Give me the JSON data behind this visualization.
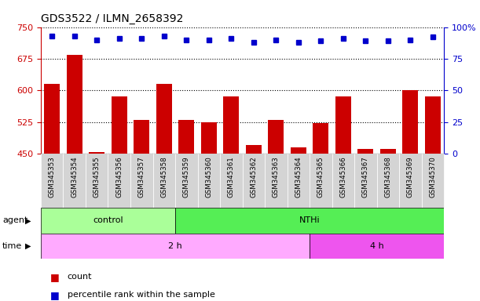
{
  "title": "GDS3522 / ILMN_2658392",
  "samples": [
    "GSM345353",
    "GSM345354",
    "GSM345355",
    "GSM345356",
    "GSM345357",
    "GSM345358",
    "GSM345359",
    "GSM345360",
    "GSM345361",
    "GSM345362",
    "GSM345363",
    "GSM345364",
    "GSM345365",
    "GSM345366",
    "GSM345367",
    "GSM345368",
    "GSM345369",
    "GSM345370"
  ],
  "counts": [
    615,
    685,
    453,
    585,
    530,
    615,
    530,
    525,
    585,
    470,
    530,
    465,
    523,
    585,
    460,
    460,
    600,
    585
  ],
  "percentiles": [
    93,
    93,
    90,
    91,
    91,
    93,
    90,
    90,
    91,
    88,
    90,
    88,
    89,
    91,
    89,
    89,
    90,
    92
  ],
  "bar_color": "#cc0000",
  "dot_color": "#0000cc",
  "ylim_left": [
    450,
    750
  ],
  "ylim_right": [
    0,
    100
  ],
  "yticks_left": [
    450,
    525,
    600,
    675,
    750
  ],
  "yticks_right": [
    0,
    25,
    50,
    75,
    100
  ],
  "agent_groups": [
    {
      "label": "control",
      "start": 0,
      "end": 6,
      "color": "#aaff99"
    },
    {
      "label": "NTHi",
      "start": 6,
      "end": 18,
      "color": "#55ee55"
    }
  ],
  "time_groups": [
    {
      "label": "2 h",
      "start": 0,
      "end": 12,
      "color": "#ffaaff"
    },
    {
      "label": "4 h",
      "start": 12,
      "end": 18,
      "color": "#ee55ee"
    }
  ],
  "agent_label": "agent",
  "time_label": "time",
  "legend_count": "count",
  "legend_percentile": "percentile rank within the sample",
  "plot_bg": "#ffffff",
  "tick_bg": "#d4d4d4",
  "left_axis_color": "#cc0000",
  "right_axis_color": "#0000cc",
  "title_fontsize": 10,
  "bar_width": 0.7
}
